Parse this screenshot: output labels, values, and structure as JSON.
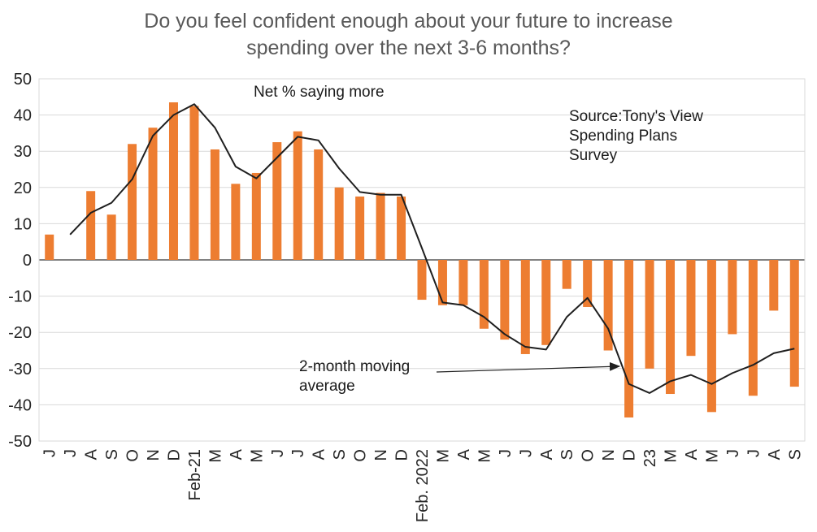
{
  "title": {
    "lines": [
      "Do you feel confident enough about your future to increase",
      "spending over the next 3-6 months?"
    ]
  },
  "annotations": {
    "series_label": "Net % saying more",
    "source": [
      "Source:Tony's View",
      "Spending Plans",
      "Survey"
    ],
    "ma_label": [
      "2-month moving",
      "average"
    ]
  },
  "chart_data": {
    "type": "bar",
    "title": "Do you feel confident enough about your future to increase spending over the next 3-6 months?",
    "xlabel": "",
    "ylabel": "",
    "ylim": [
      -50,
      50
    ],
    "ytick_step": 10,
    "grid": true,
    "legend_position": "none",
    "categories": [
      "J",
      "J",
      "A",
      "S",
      "O",
      "N",
      "D",
      "Feb-21",
      "M",
      "A",
      "M",
      "J",
      "J",
      "A",
      "S",
      "O",
      "N",
      "D",
      "Feb. 2022",
      "M",
      "A",
      "M",
      "J",
      "J",
      "A",
      "S",
      "O",
      "N",
      "D",
      "23",
      "M",
      "A",
      "M",
      "J",
      "J",
      "A",
      "S"
    ],
    "series": [
      {
        "name": "Net % saying more",
        "type": "bar",
        "color": "#ED7D31",
        "values": [
          7,
          null,
          19,
          12.5,
          32,
          36.5,
          43.5,
          42.5,
          30.5,
          21,
          24,
          32.5,
          35.5,
          30.5,
          20,
          17.5,
          18.5,
          17.5,
          -11,
          -12.5,
          -12.5,
          -19,
          -22,
          -26,
          -23.5,
          -8,
          -13,
          -25,
          -43.5,
          -30,
          -37,
          -26.5,
          -42,
          -20.5,
          -37.5,
          -14,
          -35
        ]
      },
      {
        "name": "2-month moving average",
        "type": "line",
        "color": "#1f1f1f",
        "values": [
          null,
          7,
          13,
          15.75,
          22.25,
          34.25,
          40,
          43,
          36.5,
          25.75,
          22.5,
          28.25,
          34,
          33,
          25.25,
          18.75,
          18,
          18,
          3.25,
          -11.75,
          -12.5,
          -15.75,
          -20.5,
          -24,
          -24.75,
          -15.75,
          -10.5,
          -19,
          -34.25,
          -36.75,
          -33.5,
          -31.75,
          -34.25,
          -31.25,
          -29,
          -25.75,
          -24.5
        ]
      }
    ],
    "colors": {
      "bar": "#ED7D31",
      "line": "#1f1f1f",
      "gridline": "#d9d9d9",
      "zero_axis": "#595959",
      "tick_text": "#262626",
      "title_text": "#595959"
    }
  }
}
